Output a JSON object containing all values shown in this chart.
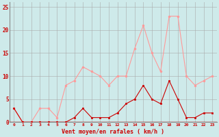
{
  "hours": [
    0,
    1,
    2,
    3,
    4,
    5,
    6,
    7,
    8,
    9,
    10,
    11,
    12,
    13,
    14,
    15,
    16,
    17,
    18,
    19,
    20,
    21,
    22,
    23
  ],
  "wind_avg": [
    3,
    0,
    0,
    0,
    0,
    0,
    0,
    1,
    3,
    1,
    1,
    1,
    2,
    4,
    5,
    8,
    5,
    4,
    9,
    5,
    1,
    1,
    2,
    2
  ],
  "wind_gust": [
    3,
    0,
    0,
    3,
    3,
    1,
    8,
    9,
    12,
    11,
    10,
    8,
    10,
    10,
    16,
    21,
    15,
    11,
    23,
    23,
    10,
    8,
    9,
    10
  ],
  "avg_color": "#cc0000",
  "gust_color": "#ff9999",
  "bg_color": "#ceeaea",
  "grid_color": "#aaaaaa",
  "xlabel": "Vent moyen/en rafales ( km/h )",
  "xlabel_color": "#cc0000",
  "ylabel_values": [
    0,
    5,
    10,
    15,
    20,
    25
  ],
  "ylim": [
    0,
    26
  ],
  "xlim": [
    -0.5,
    23.5
  ],
  "tick_color": "#cc0000",
  "spine_color": "#888888"
}
